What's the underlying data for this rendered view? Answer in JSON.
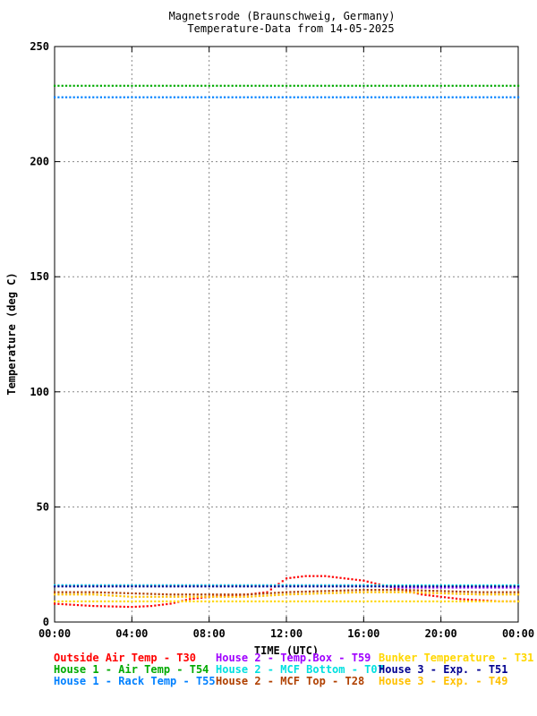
{
  "chart_data": {
    "type": "scatter",
    "title": "Magnetsrode (Braunschweig, Germany)",
    "subtitle": "Temperature-Data from 14-05-2025",
    "xlabel": "TIME (UTC)",
    "ylabel": "Temperature (deg C)",
    "xlim": [
      0,
      24
    ],
    "ylim": [
      0,
      250
    ],
    "x_ticks": [
      "00:00",
      "04:00",
      "08:00",
      "12:00",
      "16:00",
      "20:00",
      "00:00"
    ],
    "y_ticks": [
      "0",
      "50",
      "100",
      "150",
      "200",
      "250"
    ],
    "grid": true,
    "legend_position": "bottom",
    "series": [
      {
        "name": "Outside Air Temp",
        "code": "T30",
        "color": "#ff0000",
        "x": [
          0,
          1,
          2,
          3,
          4,
          5,
          6,
          7,
          8,
          9,
          10,
          11,
          12,
          13,
          14,
          15,
          16,
          17,
          18,
          19,
          20,
          21,
          22,
          23,
          24
        ],
        "y": [
          8,
          7.5,
          7,
          6.8,
          6.6,
          7,
          8,
          10,
          11,
          11.5,
          12,
          13,
          19,
          20,
          20,
          19,
          18,
          16,
          14,
          12,
          11,
          10,
          9.5,
          9,
          9
        ]
      },
      {
        "name": "House 2 - Temp.Box",
        "code": "T59",
        "color": "#a000ff",
        "x": [
          0,
          2,
          4,
          6,
          8,
          10,
          12,
          14,
          16,
          18,
          20,
          22,
          24
        ],
        "y": [
          16,
          16,
          16,
          16,
          16,
          16,
          16,
          16,
          16,
          15,
          15,
          15,
          15
        ]
      },
      {
        "name": "Bunker Temperature",
        "code": "T31",
        "color": "#ffd700",
        "x": [
          0,
          2,
          4,
          6,
          8,
          10,
          12,
          14,
          16,
          18,
          20,
          22,
          24
        ],
        "y": [
          9,
          9,
          9,
          9,
          9,
          9,
          9,
          9,
          9,
          9,
          9,
          9,
          9
        ]
      },
      {
        "name": "House 1 - Air  Temp",
        "code": "T54",
        "color": "#00aa00",
        "x": [
          0,
          2,
          4,
          6,
          8,
          10,
          12,
          14,
          16,
          18,
          20,
          22,
          24
        ],
        "y": [
          233,
          233,
          233,
          233,
          233,
          233,
          233,
          233,
          233,
          233,
          233,
          233,
          233
        ]
      },
      {
        "name": "House 2 - MCF Bottom",
        "code": "T07",
        "color": "#00e0e0",
        "x": [
          0,
          2,
          4,
          6,
          8,
          10,
          12,
          14,
          16,
          18,
          20,
          22,
          24
        ],
        "y": [
          16,
          16,
          16,
          16,
          16,
          16,
          16,
          16,
          16,
          16,
          16,
          16,
          16
        ]
      },
      {
        "name": "House 3 - Exp.",
        "code": "T51",
        "color": "#000090",
        "x": [
          0,
          2,
          4,
          6,
          8,
          10,
          12,
          14,
          16,
          18,
          20,
          22,
          24
        ],
        "y": [
          15.5,
          15.5,
          15.5,
          15.5,
          15.5,
          15.5,
          15.5,
          15.5,
          15.5,
          15.5,
          15.5,
          15.5,
          15.5
        ]
      },
      {
        "name": "House 1 - Rack Temp",
        "code": "T55",
        "color": "#0080ff",
        "x": [
          0,
          2,
          4,
          6,
          8,
          10,
          12,
          14,
          16,
          18,
          20,
          22,
          24
        ],
        "y": [
          228,
          228,
          228,
          228,
          228,
          228,
          228,
          228,
          228,
          228,
          228,
          228,
          228
        ]
      },
      {
        "name": "House 2 - MCF Top",
        "code": "T28",
        "color": "#b04000",
        "x": [
          0,
          2,
          4,
          6,
          8,
          10,
          12,
          14,
          16,
          18,
          20,
          22,
          24
        ],
        "y": [
          13,
          13,
          12.5,
          12,
          12,
          12,
          13,
          13.5,
          14,
          14,
          13.5,
          13,
          13
        ]
      },
      {
        "name": "House 3 - Exp.",
        "code": "T49",
        "color": "#ffc000",
        "x": [
          0,
          2,
          4,
          6,
          8,
          10,
          12,
          14,
          16,
          18,
          20,
          22,
          24
        ],
        "y": [
          12,
          12,
          11,
          11,
          11,
          11,
          12,
          12.5,
          13,
          13,
          12.5,
          12,
          12
        ]
      }
    ]
  }
}
